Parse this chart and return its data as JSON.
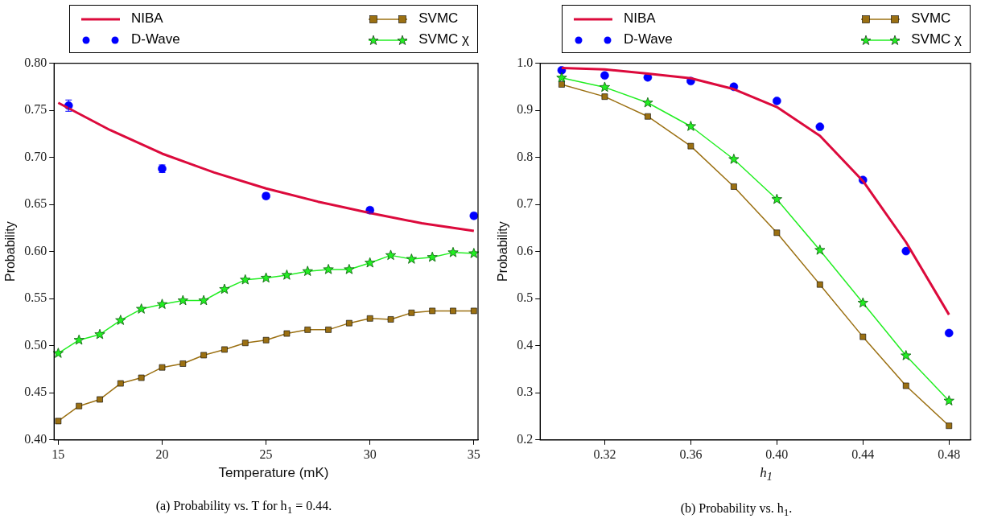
{
  "chart_data": [
    {
      "type": "line",
      "xlabel": "Temperature (mK)",
      "ylabel": "Probability",
      "xlim": [
        14.8,
        35.2
      ],
      "ylim": [
        0.4,
        0.8
      ],
      "xticks": [
        15,
        20,
        25,
        30,
        35
      ],
      "yticks": [
        {
          "value": 0.4,
          "label": "0.40"
        },
        {
          "value": 0.45,
          "label": "0.45"
        },
        {
          "value": 0.5,
          "label": "0.50"
        },
        {
          "value": 0.55,
          "label": "0.55"
        },
        {
          "value": 0.6,
          "label": "0.60"
        },
        {
          "value": 0.65,
          "label": "0.65"
        },
        {
          "value": 0.7,
          "label": "0.70"
        },
        {
          "value": 0.75,
          "label": "0.75"
        },
        {
          "value": 0.8,
          "label": "0.80"
        }
      ],
      "grid": false,
      "legend": "top",
      "annotations": [
        "(a) Probability vs. T for h$_{1}$ = 0.44."
      ],
      "series": [
        {
          "name": "NIBA",
          "type": "line",
          "marker": "none",
          "color": "#dc0a3c",
          "x": [
            15,
            17.5,
            20,
            22.5,
            25,
            27.5,
            30,
            32.5,
            35
          ],
          "values": [
            0.758,
            0.729,
            0.704,
            0.684,
            0.667,
            0.653,
            0.641,
            0.63,
            0.622
          ]
        },
        {
          "name": "D-Wave",
          "type": "scatter",
          "marker": "circle",
          "color": "#0000ff",
          "x": [
            15.5,
            20,
            25,
            30,
            35
          ],
          "values": [
            0.755,
            0.688,
            0.659,
            0.644,
            0.638
          ],
          "errors": [
            0.006,
            0.004,
            0.003,
            0.003,
            0.003
          ]
        },
        {
          "name": "SVMC",
          "type": "line",
          "marker": "square",
          "color": "#9b7012",
          "x": [
            15,
            16,
            17,
            18,
            19,
            20,
            21,
            22,
            23,
            24,
            25,
            26,
            27,
            28,
            29,
            30,
            31,
            32,
            33,
            34,
            35
          ],
          "values": [
            0.42,
            0.436,
            0.443,
            0.46,
            0.466,
            0.477,
            0.481,
            0.49,
            0.496,
            0.503,
            0.506,
            0.513,
            0.517,
            0.517,
            0.524,
            0.529,
            0.528,
            0.535,
            0.537,
            0.537,
            0.537
          ]
        },
        {
          "name": "SVMC χ",
          "type": "line",
          "marker": "star",
          "color": "#22ee22",
          "x": [
            15,
            16,
            17,
            18,
            19,
            20,
            21,
            22,
            23,
            24,
            25,
            26,
            27,
            28,
            29,
            30,
            31,
            32,
            33,
            34,
            35
          ],
          "values": [
            0.492,
            0.506,
            0.512,
            0.527,
            0.539,
            0.544,
            0.548,
            0.548,
            0.56,
            0.57,
            0.572,
            0.575,
            0.579,
            0.581,
            0.581,
            0.588,
            0.596,
            0.592,
            0.594,
            0.599,
            0.598
          ]
        }
      ]
    },
    {
      "type": "line",
      "xlabel": "h$_{1}$",
      "ylabel": "Probability",
      "xlim": [
        0.29,
        0.49
      ],
      "ylim": [
        0.2,
        1.0
      ],
      "xticks": [
        0.32,
        0.36,
        {
          "value": 0.4,
          "label": "0.40"
        },
        0.44,
        0.48
      ],
      "yticks": [
        0.2,
        0.3,
        0.4,
        0.5,
        0.6,
        0.7,
        0.8,
        0.9,
        {
          "value": 1.0,
          "label": "1.0"
        }
      ],
      "grid": false,
      "legend": "top",
      "annotations": [
        "(b) Probability vs. h$_{1}$."
      ],
      "series": [
        {
          "name": "NIBA",
          "type": "line",
          "marker": "none",
          "color": "#dc0a3c",
          "x": [
            0.3,
            0.32,
            0.34,
            0.36,
            0.38,
            0.4,
            0.42,
            0.44,
            0.46,
            0.48
          ],
          "values": [
            0.99,
            0.987,
            0.978,
            0.968,
            0.945,
            0.907,
            0.846,
            0.75,
            0.62,
            0.466
          ]
        },
        {
          "name": "D-Wave",
          "type": "scatter",
          "marker": "circle",
          "color": "#0000ff",
          "x": [
            0.3,
            0.32,
            0.34,
            0.36,
            0.38,
            0.4,
            0.42,
            0.44,
            0.46,
            0.48
          ],
          "values": [
            0.985,
            0.974,
            0.97,
            0.962,
            0.95,
            0.92,
            0.865,
            0.752,
            0.601,
            0.427
          ]
        },
        {
          "name": "SVMC",
          "type": "line",
          "marker": "square",
          "color": "#9b7012",
          "x": [
            0.3,
            0.32,
            0.34,
            0.36,
            0.38,
            0.4,
            0.42,
            0.44,
            0.46,
            0.48
          ],
          "values": [
            0.955,
            0.929,
            0.887,
            0.824,
            0.738,
            0.64,
            0.53,
            0.419,
            0.315,
            0.23
          ]
        },
        {
          "name": "SVMC χ",
          "type": "line",
          "marker": "star",
          "color": "#22ee22",
          "x": [
            0.3,
            0.32,
            0.34,
            0.36,
            0.38,
            0.4,
            0.42,
            0.44,
            0.46,
            0.48
          ],
          "values": [
            0.969,
            0.949,
            0.916,
            0.866,
            0.796,
            0.711,
            0.603,
            0.491,
            0.379,
            0.283
          ]
        }
      ]
    }
  ]
}
